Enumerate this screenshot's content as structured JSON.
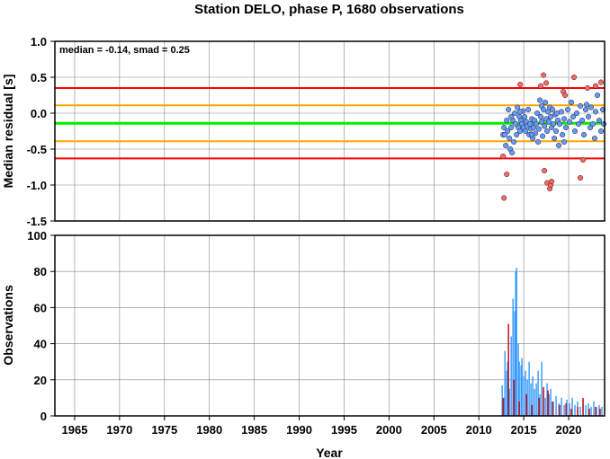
{
  "chart_data": [
    {
      "type": "scatter",
      "title": "Station DELO, phase P, 1680 observations",
      "xlabel": "",
      "ylabel": "Median residual [s]",
      "xlim": [
        1962.8,
        2024.0
      ],
      "ylim": [
        -1.5,
        1.0
      ],
      "yticks": [
        "1.0",
        "0.5",
        "0.0",
        "-0.5",
        "-1.0",
        "-1.5"
      ],
      "annotation": "median = -0.14, smad = 0.25",
      "grid": true,
      "reference_lines": [
        {
          "value": 0.35,
          "color": "#ff0000"
        },
        {
          "value": 0.11,
          "color": "#ffa500"
        },
        {
          "value": -0.14,
          "color": "#00ee00"
        },
        {
          "value": -0.39,
          "color": "#ffa500"
        },
        {
          "value": -0.63,
          "color": "#ff0000"
        }
      ],
      "series": [
        {
          "color": "#6699ff",
          "points": [
            [
              2012.7,
              -0.3
            ],
            [
              2012.8,
              -0.2
            ],
            [
              2013.0,
              -0.45
            ],
            [
              2013.1,
              -0.1
            ],
            [
              2013.2,
              -0.25
            ],
            [
              2013.3,
              0.05
            ],
            [
              2013.4,
              -0.35
            ],
            [
              2013.5,
              -0.5
            ],
            [
              2013.6,
              -0.2
            ],
            [
              2013.7,
              -0.55
            ],
            [
              2013.8,
              -0.1
            ],
            [
              2013.9,
              -0.4
            ],
            [
              2014.0,
              0.0
            ],
            [
              2014.1,
              -0.15
            ],
            [
              2014.2,
              -0.3
            ],
            [
              2014.3,
              0.08
            ],
            [
              2014.4,
              -0.2
            ],
            [
              2014.5,
              -0.05
            ],
            [
              2014.6,
              -0.25
            ],
            [
              2014.7,
              -0.1
            ],
            [
              2014.8,
              -0.15
            ],
            [
              2014.9,
              0.03
            ],
            [
              2015.0,
              -0.2
            ],
            [
              2015.1,
              -0.05
            ],
            [
              2015.2,
              -0.25
            ],
            [
              2015.3,
              -0.12
            ],
            [
              2015.4,
              -0.18
            ],
            [
              2015.5,
              0.05
            ],
            [
              2015.6,
              -0.3
            ],
            [
              2015.7,
              -0.15
            ],
            [
              2015.8,
              -0.22
            ],
            [
              2015.9,
              -0.08
            ],
            [
              2016.0,
              -0.35
            ],
            [
              2016.1,
              -0.2
            ],
            [
              2016.2,
              -0.1
            ],
            [
              2016.3,
              -0.28
            ],
            [
              2016.4,
              -0.15
            ],
            [
              2016.5,
              0.0
            ],
            [
              2016.6,
              -0.4
            ],
            [
              2016.7,
              -0.22
            ],
            [
              2016.8,
              0.18
            ],
            [
              2016.9,
              -0.05
            ],
            [
              2017.0,
              0.1
            ],
            [
              2017.1,
              -0.32
            ],
            [
              2017.2,
              0.05
            ],
            [
              2017.3,
              -0.18
            ],
            [
              2017.4,
              0.15
            ],
            [
              2017.5,
              -0.08
            ],
            [
              2017.6,
              -0.25
            ],
            [
              2017.7,
              0.02
            ],
            [
              2017.8,
              -0.12
            ],
            [
              2017.9,
              0.08
            ],
            [
              2018.0,
              -0.05
            ],
            [
              2018.1,
              -0.2
            ],
            [
              2018.2,
              0.05
            ],
            [
              2018.3,
              -0.15
            ],
            [
              2018.4,
              -0.35
            ],
            [
              2018.5,
              -0.02
            ],
            [
              2018.6,
              -0.25
            ],
            [
              2018.7,
              0.0
            ],
            [
              2018.8,
              -0.1
            ],
            [
              2018.9,
              -0.45
            ],
            [
              2019.0,
              -0.15
            ],
            [
              2019.2,
              0.02
            ],
            [
              2019.3,
              -0.3
            ],
            [
              2019.5,
              -0.08
            ],
            [
              2019.7,
              -0.2
            ],
            [
              2019.9,
              0.05
            ],
            [
              2020.1,
              -0.12
            ],
            [
              2020.3,
              0.15
            ],
            [
              2020.5,
              -0.05
            ],
            [
              2020.7,
              -0.25
            ],
            [
              2020.9,
              0.0
            ],
            [
              2021.1,
              -0.15
            ],
            [
              2021.3,
              0.1
            ],
            [
              2021.5,
              -0.1
            ],
            [
              2021.7,
              -0.3
            ],
            [
              2021.9,
              0.05
            ],
            [
              2022.0,
              0.12
            ],
            [
              2022.2,
              -0.05
            ],
            [
              2022.4,
              -0.2
            ],
            [
              2022.5,
              0.08
            ],
            [
              2022.7,
              -0.15
            ],
            [
              2022.9,
              -0.35
            ],
            [
              2023.0,
              0.02
            ],
            [
              2023.2,
              0.25
            ],
            [
              2023.4,
              -0.1
            ],
            [
              2023.6,
              -0.25
            ],
            [
              2023.8,
              0.05
            ],
            [
              2023.9,
              -0.15
            ],
            [
              2012.9,
              -0.3
            ],
            [
              2013.6,
              -0.05
            ],
            [
              2014.6,
              0.02
            ],
            [
              2015.9,
              -0.3
            ],
            [
              2017.0,
              -0.12
            ],
            [
              2019.5,
              -0.4
            ]
          ]
        },
        {
          "color": "#ff6666",
          "points": [
            [
              2012.7,
              -0.6
            ],
            [
              2012.8,
              -1.18
            ],
            [
              2013.1,
              -0.85
            ],
            [
              2014.6,
              0.4
            ],
            [
              2016.9,
              0.38
            ],
            [
              2017.2,
              0.53
            ],
            [
              2017.3,
              -0.8
            ],
            [
              2017.5,
              0.42
            ],
            [
              2017.6,
              -0.97
            ],
            [
              2017.9,
              -1.05
            ],
            [
              2018.0,
              -1.0
            ],
            [
              2018.1,
              -0.95
            ],
            [
              2019.4,
              0.3
            ],
            [
              2019.6,
              0.25
            ],
            [
              2020.6,
              0.5
            ],
            [
              2021.3,
              -0.9
            ],
            [
              2021.6,
              -0.65
            ],
            [
              2022.1,
              0.35
            ],
            [
              2023.0,
              0.38
            ],
            [
              2023.6,
              0.43
            ]
          ]
        }
      ]
    },
    {
      "type": "bar",
      "xlabel": "Year",
      "ylabel": "Observations",
      "xlim": [
        1962.8,
        2024.0
      ],
      "ylim": [
        0,
        100
      ],
      "yticks": [
        "100",
        "80",
        "60",
        "40",
        "20",
        "0"
      ],
      "xticks": [
        "1965",
        "1970",
        "1975",
        "1980",
        "1985",
        "1990",
        "1995",
        "2000",
        "2005",
        "2010",
        "2015",
        "2020"
      ],
      "grid": true,
      "series": [
        {
          "color": "#3399ff",
          "points": [
            [
              2012.6,
              17
            ],
            [
              2012.8,
              10
            ],
            [
              2012.9,
              36
            ],
            [
              2013.1,
              25
            ],
            [
              2013.2,
              30
            ],
            [
              2013.4,
              15
            ],
            [
              2013.6,
              44
            ],
            [
              2013.8,
              65
            ],
            [
              2014.0,
              58
            ],
            [
              2014.1,
              80
            ],
            [
              2014.2,
              82
            ],
            [
              2014.4,
              40
            ],
            [
              2014.5,
              30
            ],
            [
              2014.7,
              28
            ],
            [
              2014.8,
              32
            ],
            [
              2015.0,
              22
            ],
            [
              2015.2,
              25
            ],
            [
              2015.4,
              20
            ],
            [
              2015.6,
              30
            ],
            [
              2015.8,
              18
            ],
            [
              2016.0,
              22
            ],
            [
              2016.2,
              15
            ],
            [
              2016.4,
              18
            ],
            [
              2016.6,
              25
            ],
            [
              2016.8,
              12
            ],
            [
              2017.0,
              30
            ],
            [
              2017.2,
              15
            ],
            [
              2017.4,
              10
            ],
            [
              2017.6,
              18
            ],
            [
              2017.8,
              12
            ],
            [
              2018.0,
              15
            ],
            [
              2018.3,
              8
            ],
            [
              2018.6,
              11
            ],
            [
              2018.9,
              7
            ],
            [
              2019.2,
              10
            ],
            [
              2019.5,
              6
            ],
            [
              2019.8,
              9
            ],
            [
              2020.1,
              7
            ],
            [
              2020.4,
              10
            ],
            [
              2020.7,
              6
            ],
            [
              2021.0,
              8
            ],
            [
              2021.3,
              5
            ],
            [
              2021.6,
              9
            ],
            [
              2021.9,
              6
            ],
            [
              2022.2,
              7
            ],
            [
              2022.5,
              5
            ],
            [
              2022.8,
              8
            ],
            [
              2023.1,
              5
            ],
            [
              2023.4,
              6
            ],
            [
              2023.7,
              5
            ]
          ]
        },
        {
          "color": "#cc0000",
          "points": [
            [
              2012.7,
              10
            ],
            [
              2013.3,
              51
            ],
            [
              2013.9,
              20
            ],
            [
              2014.5,
              8
            ],
            [
              2015.3,
              12
            ],
            [
              2015.9,
              6
            ],
            [
              2016.7,
              10
            ],
            [
              2017.2,
              16
            ],
            [
              2017.7,
              14
            ],
            [
              2018.2,
              8
            ],
            [
              2019.0,
              6
            ],
            [
              2019.7,
              7
            ],
            [
              2020.3,
              4
            ],
            [
              2021.0,
              5
            ],
            [
              2021.6,
              10
            ],
            [
              2022.3,
              4
            ],
            [
              2023.0,
              5
            ],
            [
              2023.5,
              4
            ]
          ]
        }
      ]
    }
  ]
}
